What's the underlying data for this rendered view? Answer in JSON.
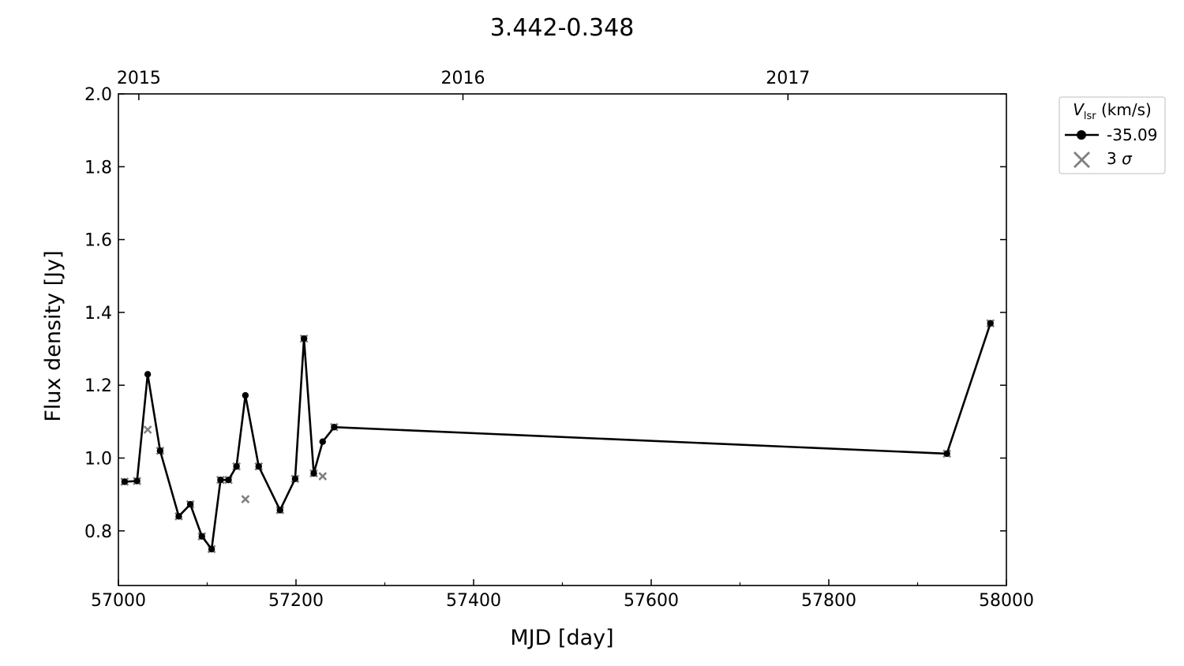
{
  "chart_data": {
    "type": "line",
    "title": "3.442-0.348",
    "xlabel": "MJD [day]",
    "ylabel": "Flux density [Jy]",
    "xlim": [
      57000,
      58000
    ],
    "ylim": [
      0.65,
      2.0
    ],
    "x_ticks": [
      57000,
      57200,
      57400,
      57600,
      57800,
      58000
    ],
    "x_tick_labels": [
      "57000",
      "57200",
      "57400",
      "57600",
      "57800",
      "58000"
    ],
    "x_minor_ticks": [
      57100,
      57300,
      57500,
      57700,
      57900
    ],
    "y_ticks": [
      0.8,
      1.0,
      1.2,
      1.4,
      1.6,
      1.8,
      2.0
    ],
    "y_tick_labels": [
      "0.8",
      "1.0",
      "1.2",
      "1.4",
      "1.6",
      "1.8",
      "2.0"
    ],
    "top_axis": {
      "ticks": [
        57023,
        57388,
        57754
      ],
      "labels": [
        "2015",
        "2016",
        "2017"
      ]
    },
    "grid": false,
    "legend": {
      "placement": "outside-right-top",
      "title_main": "V",
      "title_sub": "lsr",
      "title_unit": " (km/s)",
      "entries": [
        {
          "label": "-35.09",
          "marker": "circle-line"
        },
        {
          "label_prefix": "3 ",
          "label_symbol": "σ",
          "marker": "x"
        }
      ]
    },
    "series": [
      {
        "name": "-35.09",
        "color": "#000000",
        "x": [
          57007,
          57021,
          57033,
          57047,
          57068,
          57081,
          57094,
          57105,
          57115,
          57124,
          57133,
          57143,
          57158,
          57182,
          57199,
          57209,
          57220,
          57230,
          57243,
          57933,
          57982
        ],
        "y": [
          0.935,
          0.937,
          1.23,
          1.02,
          0.84,
          0.873,
          0.785,
          0.75,
          0.94,
          0.94,
          0.977,
          1.172,
          0.977,
          0.857,
          0.943,
          1.328,
          0.958,
          1.045,
          1.085,
          1.012,
          1.37
        ]
      }
    ],
    "sigma_points": {
      "name": "3 σ",
      "color": "#808080",
      "x": [
        57007,
        57021,
        57033,
        57047,
        57068,
        57081,
        57094,
        57105,
        57115,
        57124,
        57133,
        57143,
        57158,
        57182,
        57199,
        57209,
        57220,
        57230,
        57243,
        57933,
        57982
      ],
      "y": [
        0.935,
        0.937,
        1.078,
        1.02,
        0.84,
        0.873,
        0.785,
        0.75,
        0.94,
        0.94,
        0.977,
        0.887,
        0.977,
        0.857,
        0.943,
        1.328,
        0.958,
        0.95,
        1.085,
        1.012,
        1.37
      ]
    }
  }
}
